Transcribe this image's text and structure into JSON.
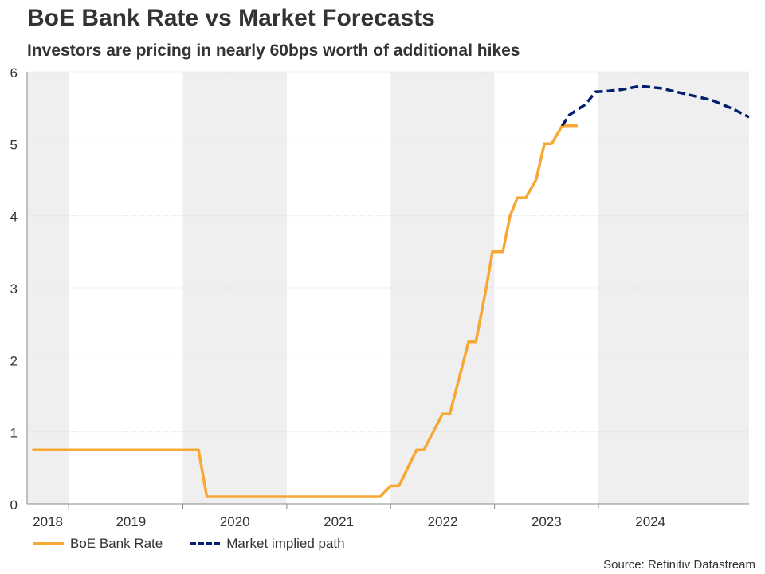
{
  "header": {
    "title": "BoE Bank Rate vs Market Forecasts",
    "subtitle": "Investors are pricing in nearly 60bps worth of additional hikes"
  },
  "source": "Source: Refinitiv Datastream",
  "colors": {
    "bank_rate": "#F7A834",
    "market_path": "#001F6E",
    "shade": "#EFEFEF",
    "grid": "#DDDDDD",
    "axis": "#888888"
  },
  "chart_data": {
    "type": "line",
    "title": "BoE Bank Rate vs Market Forecasts",
    "xlabel": "",
    "ylabel": "",
    "ylim": [
      0,
      6
    ],
    "xlim": [
      2018.0,
      2024.95
    ],
    "y_ticks": [
      "0",
      "1",
      "2",
      "3",
      "4",
      "5",
      "6"
    ],
    "year_labels": [
      {
        "label": "2018",
        "center": 2018.2
      },
      {
        "label": "2019",
        "center": 2019.0
      },
      {
        "label": "2020",
        "center": 2020.0
      },
      {
        "label": "2021",
        "center": 2021.0
      },
      {
        "label": "2022",
        "center": 2022.0
      },
      {
        "label": "2023",
        "center": 2023.0
      },
      {
        "label": "2024",
        "center": 2024.0
      }
    ],
    "year_boundaries": [
      2018.4,
      2019.5,
      2020.5,
      2021.5,
      2022.5,
      2023.5
    ],
    "shaded_bands": [
      [
        2018.0,
        2018.4
      ],
      [
        2019.5,
        2020.5
      ],
      [
        2021.5,
        2022.5
      ],
      [
        2023.5,
        2024.95
      ]
    ],
    "series": [
      {
        "name": "BoE Bank Rate",
        "style": "solid",
        "x": [
          2018.05,
          2019.65,
          2019.73,
          2021.4,
          2021.5,
          2021.58,
          2021.75,
          2021.82,
          2022.0,
          2022.07,
          2022.25,
          2022.32,
          2022.42,
          2022.48,
          2022.58,
          2022.65,
          2022.72,
          2022.8,
          2022.9,
          2022.98,
          2023.05,
          2023.15,
          2023.3
        ],
        "values": [
          0.75,
          0.75,
          0.1,
          0.1,
          0.25,
          0.25,
          0.75,
          0.75,
          1.25,
          1.25,
          2.25,
          2.25,
          3.0,
          3.5,
          3.5,
          4.0,
          4.25,
          4.25,
          4.5,
          5.0,
          5.0,
          5.25,
          5.25
        ]
      },
      {
        "name": "Market implied path",
        "style": "dashed",
        "x": [
          2023.15,
          2023.22,
          2023.38,
          2023.47,
          2023.58,
          2023.72,
          2023.9,
          2024.1,
          2024.25,
          2024.4,
          2024.6,
          2024.8,
          2024.95
        ],
        "values": [
          5.25,
          5.4,
          5.55,
          5.72,
          5.73,
          5.75,
          5.8,
          5.77,
          5.72,
          5.67,
          5.6,
          5.48,
          5.37
        ]
      }
    ]
  }
}
